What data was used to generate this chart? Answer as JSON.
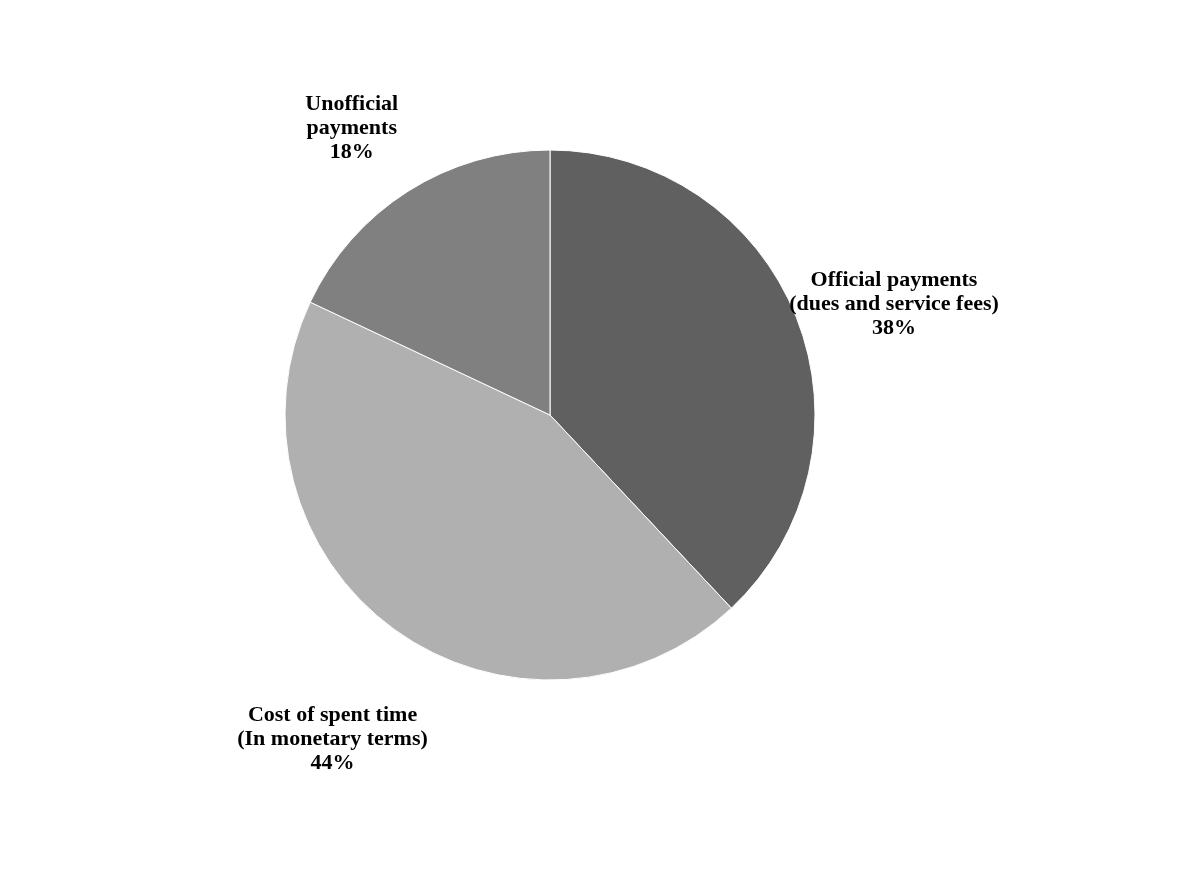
{
  "chart_data": {
    "type": "pie",
    "categories": [
      "Official payments\n(dues and service fees)",
      "Cost of spent time\n(In monetary terms)",
      "Unofficial\npayments"
    ],
    "values": [
      38,
      44,
      18
    ],
    "colors": [
      "#606060",
      "#b0b0b0",
      "#808080"
    ],
    "value_labels": [
      "38%",
      "44%",
      "18%"
    ],
    "legend": false
  }
}
